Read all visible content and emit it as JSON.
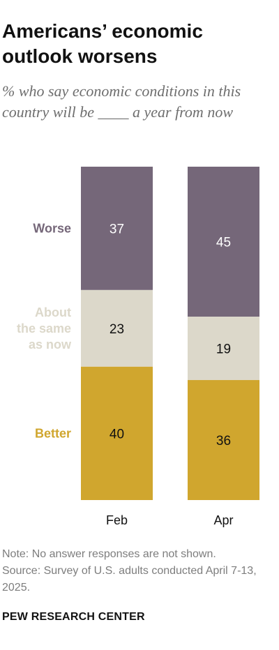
{
  "title": "Americans’ economic outlook worsens",
  "subtitle": "% who say economic conditions in this country will be ____ a year from now",
  "note": "Note: No answer responses are not shown.",
  "source": "Source: Survey of U.S. adults conducted April 7-13, 2025.",
  "organization": "PEW RESEARCH CENTER",
  "colors": {
    "worse": "#756779",
    "same": "#dcd8ca",
    "better": "#d0a62e",
    "value_text": "#111111",
    "value_text_on_dark": "#ffffff"
  },
  "chart_data": {
    "type": "bar",
    "stacked": true,
    "categories": [
      "Feb",
      "Apr"
    ],
    "series": [
      {
        "name": "Worse",
        "label_lines": [
          "Worse"
        ],
        "color": "#756779",
        "values": [
          37,
          45
        ]
      },
      {
        "name": "About the same as now",
        "label_lines": [
          "About",
          "the same",
          "as now"
        ],
        "color": "#dcd8ca",
        "values": [
          23,
          19
        ]
      },
      {
        "name": "Better",
        "label_lines": [
          "Better"
        ],
        "color": "#d0a62e",
        "values": [
          40,
          36
        ]
      }
    ],
    "ylim": [
      0,
      100
    ],
    "legend": "left-inline",
    "grid": false
  }
}
